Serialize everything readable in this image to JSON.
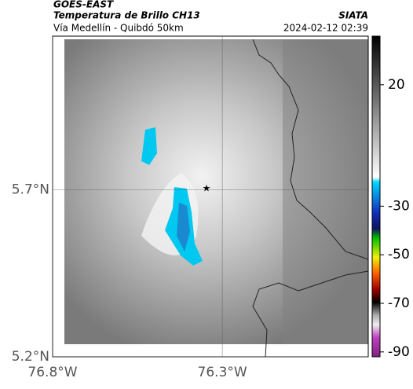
{
  "header": {
    "title": "GOES-EAST",
    "subtitle": "Temperatura de Brillo CH13",
    "route": "Vía Medellín - Quibdó 50km",
    "source": "SIATA",
    "timestamp": "2024-02-12 02:39"
  },
  "map": {
    "lonlim": [
      -76.8,
      -75.87
    ],
    "latlim": [
      5.2,
      6.16
    ],
    "lat_ticks": [
      {
        "value": 5.7,
        "label": "5.7°N"
      },
      {
        "value": 5.2,
        "label": "5.2°N"
      }
    ],
    "lon_ticks": [
      {
        "value": -76.8,
        "label": "76.8°W"
      },
      {
        "value": -76.3,
        "label": "76.3°W"
      }
    ]
  },
  "colorbar": {
    "lim": [
      40,
      -92
    ],
    "ticks": [
      20,
      -30,
      -50,
      -70,
      -90
    ]
  }
}
